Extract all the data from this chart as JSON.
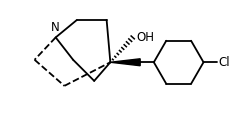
{
  "background_color": "#ffffff",
  "line_color": "#000000",
  "lw": 1.3,
  "fig_width": 2.53,
  "fig_height": 1.27,
  "dpi": 100,
  "N_label": "N",
  "OH_label": "OH",
  "Cl_label": "Cl",
  "stereo_dash_count": 9,
  "xlim": [
    0,
    10
  ],
  "ylim": [
    0,
    5
  ]
}
